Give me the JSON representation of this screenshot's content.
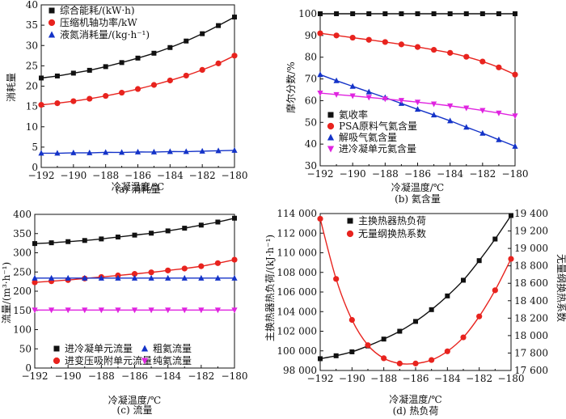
{
  "colors": {
    "black": "#111111",
    "red": "#e8231e",
    "blue": "#1433c8",
    "magenta": "#e024e0"
  },
  "chart_data": [
    {
      "id": "a",
      "type": "line",
      "caption": "(a) 消耗量",
      "xlabel": "冷凝温度/℃",
      "ylabel": "消耗量",
      "xlim": [
        -192,
        -180
      ],
      "ylim": [
        0,
        40
      ],
      "xticks": [
        -192,
        -190,
        -188,
        -186,
        -184,
        -182,
        -180
      ],
      "yticks": [
        0,
        5,
        10,
        15,
        20,
        25,
        30,
        35,
        40
      ],
      "x": [
        -192,
        -191,
        -190,
        -189,
        -188,
        -187,
        -186,
        -185,
        -184,
        -183,
        -182,
        -181,
        -180
      ],
      "legend_position": "top-left",
      "series": [
        {
          "name": "综合能耗/(kW·h)",
          "marker": "square",
          "color": "#111111",
          "values": [
            22.0,
            22.5,
            23.2,
            23.9,
            24.8,
            25.8,
            26.9,
            28.1,
            29.5,
            31.1,
            32.9,
            34.9,
            37.0
          ]
        },
        {
          "name": "压缩机轴功率/kW",
          "marker": "circle",
          "color": "#e8231e",
          "values": [
            15.4,
            15.8,
            16.3,
            16.9,
            17.6,
            18.4,
            19.3,
            20.3,
            21.4,
            22.6,
            24.0,
            25.6,
            27.5
          ]
        },
        {
          "name": "液氮消耗量/(kg·h⁻¹)",
          "marker": "triangle-up",
          "color": "#1433c8",
          "values": [
            3.5,
            3.5,
            3.6,
            3.6,
            3.7,
            3.7,
            3.8,
            3.8,
            3.9,
            3.9,
            4.0,
            4.1,
            4.2
          ]
        }
      ]
    },
    {
      "id": "b",
      "type": "line",
      "caption": "(b) 氦含量",
      "xlabel": "冷凝温度/℃",
      "ylabel": "摩尔分数/%",
      "xlim": [
        -192,
        -180
      ],
      "ylim": [
        30,
        100
      ],
      "xticks": [
        -192,
        -190,
        -188,
        -186,
        -184,
        -182,
        -180
      ],
      "yticks": [
        30,
        40,
        50,
        60,
        70,
        80,
        90,
        100
      ],
      "x": [
        -192,
        -191,
        -190,
        -189,
        -188,
        -187,
        -186,
        -185,
        -184,
        -183,
        -182,
        -181,
        -180
      ],
      "legend_position": "bottom-left",
      "series": [
        {
          "name": "氦收率",
          "marker": "square",
          "color": "#111111",
          "values": [
            100,
            100,
            100,
            100,
            100,
            100,
            100,
            100,
            100,
            100,
            100,
            100,
            100
          ]
        },
        {
          "name": "PSA原料气氦含量",
          "marker": "circle",
          "color": "#e8231e",
          "values": [
            91.0,
            90.0,
            89.0,
            88.0,
            87.0,
            85.9,
            84.7,
            83.4,
            82.0,
            80.2,
            78.0,
            75.3,
            72.0
          ]
        },
        {
          "name": "解吸气氦含量",
          "marker": "triangle-up",
          "color": "#1433c8",
          "values": [
            72.0,
            69.2,
            66.6,
            64.0,
            61.4,
            58.7,
            56.0,
            53.4,
            50.7,
            47.8,
            45.0,
            42.0,
            39.0
          ]
        },
        {
          "name": "进冷凝单元氦含量",
          "marker": "triangle-down",
          "color": "#e024e0",
          "values": [
            63.5,
            62.8,
            62.2,
            61.5,
            60.8,
            60.1,
            59.3,
            58.5,
            57.6,
            56.6,
            55.5,
            54.3,
            53.0
          ]
        }
      ]
    },
    {
      "id": "c",
      "type": "line",
      "caption": "(c) 流量",
      "xlabel": "冷凝温度/℃",
      "ylabel": "流量/(m³·h⁻¹)",
      "xlim": [
        -192,
        -180
      ],
      "ylim": [
        0,
        400
      ],
      "xticks": [
        -192,
        -190,
        -188,
        -186,
        -184,
        -182,
        -180
      ],
      "yticks": [
        0,
        50,
        100,
        150,
        200,
        250,
        300,
        350,
        400
      ],
      "x": [
        -192,
        -191,
        -190,
        -189,
        -188,
        -187,
        -186,
        -185,
        -184,
        -183,
        -182,
        -181,
        -180
      ],
      "legend_position": "bottom",
      "series": [
        {
          "name": "进冷凝单元流量",
          "marker": "square",
          "color": "#111111",
          "values": [
            324,
            326,
            329,
            332,
            336,
            341,
            346,
            351,
            357,
            364,
            372,
            380,
            390
          ]
        },
        {
          "name": "进变压吸附单元流量",
          "marker": "circle",
          "color": "#e8231e",
          "values": [
            223,
            226,
            229,
            233,
            237,
            241,
            245,
            249,
            254,
            259,
            265,
            273,
            282
          ]
        },
        {
          "name": "粗氦流量",
          "marker": "triangle-up",
          "color": "#1433c8",
          "values": [
            234,
            234,
            234,
            234,
            234,
            234,
            234,
            234,
            234,
            234,
            234,
            234,
            234
          ]
        },
        {
          "name": "纯氦流量",
          "marker": "triangle-down",
          "color": "#e024e0",
          "values": [
            151,
            151,
            151,
            151,
            151,
            151,
            151,
            151,
            151,
            151,
            151,
            151,
            151
          ]
        }
      ]
    },
    {
      "id": "d",
      "type": "line",
      "caption": "(d) 热负荷",
      "xlabel": "冷凝温度/℃",
      "ylabel": "主换热器热负荷/(kJ·h⁻¹)",
      "y2label": "无量纲换热系数",
      "xlim": [
        -192,
        -180
      ],
      "ylim": [
        98000,
        114000
      ],
      "y2lim": [
        17600,
        19400
      ],
      "xticks": [
        -192,
        -190,
        -188,
        -186,
        -184,
        -182,
        -180
      ],
      "yticks": [
        98000,
        100000,
        102000,
        104000,
        106000,
        108000,
        110000,
        112000,
        114000
      ],
      "ytick_labels": [
        "98 000",
        "100 000",
        "102 000",
        "104 000",
        "106 000",
        "108 000",
        "110 000",
        "112 000",
        "114 000"
      ],
      "y2ticks": [
        17600,
        17800,
        18000,
        18200,
        18400,
        18600,
        18800,
        19000,
        19200,
        19400
      ],
      "y2tick_labels": [
        "17 600",
        "17 800",
        "18 000",
        "18 200",
        "18 400",
        "18 600",
        "18 800",
        "19 000",
        "19 200",
        "19 400"
      ],
      "x": [
        -192,
        -191,
        -190,
        -189,
        -188,
        -187,
        -186,
        -185,
        -184,
        -183,
        -182,
        -181,
        -180
      ],
      "legend_position": "top-right",
      "series": [
        {
          "name": "主换热器热负荷",
          "marker": "square",
          "color": "#111111",
          "axis": "left",
          "values": [
            99200,
            99500,
            99900,
            100500,
            101200,
            102000,
            103000,
            104200,
            105600,
            107200,
            109200,
            111400,
            113800
          ]
        },
        {
          "name": "无量纲换热系数",
          "marker": "circle",
          "color": "#e8231e",
          "axis": "right",
          "values": [
            19340,
            18650,
            18180,
            17890,
            17740,
            17680,
            17680,
            17720,
            17820,
            17980,
            18220,
            18520,
            18880
          ]
        }
      ]
    }
  ]
}
